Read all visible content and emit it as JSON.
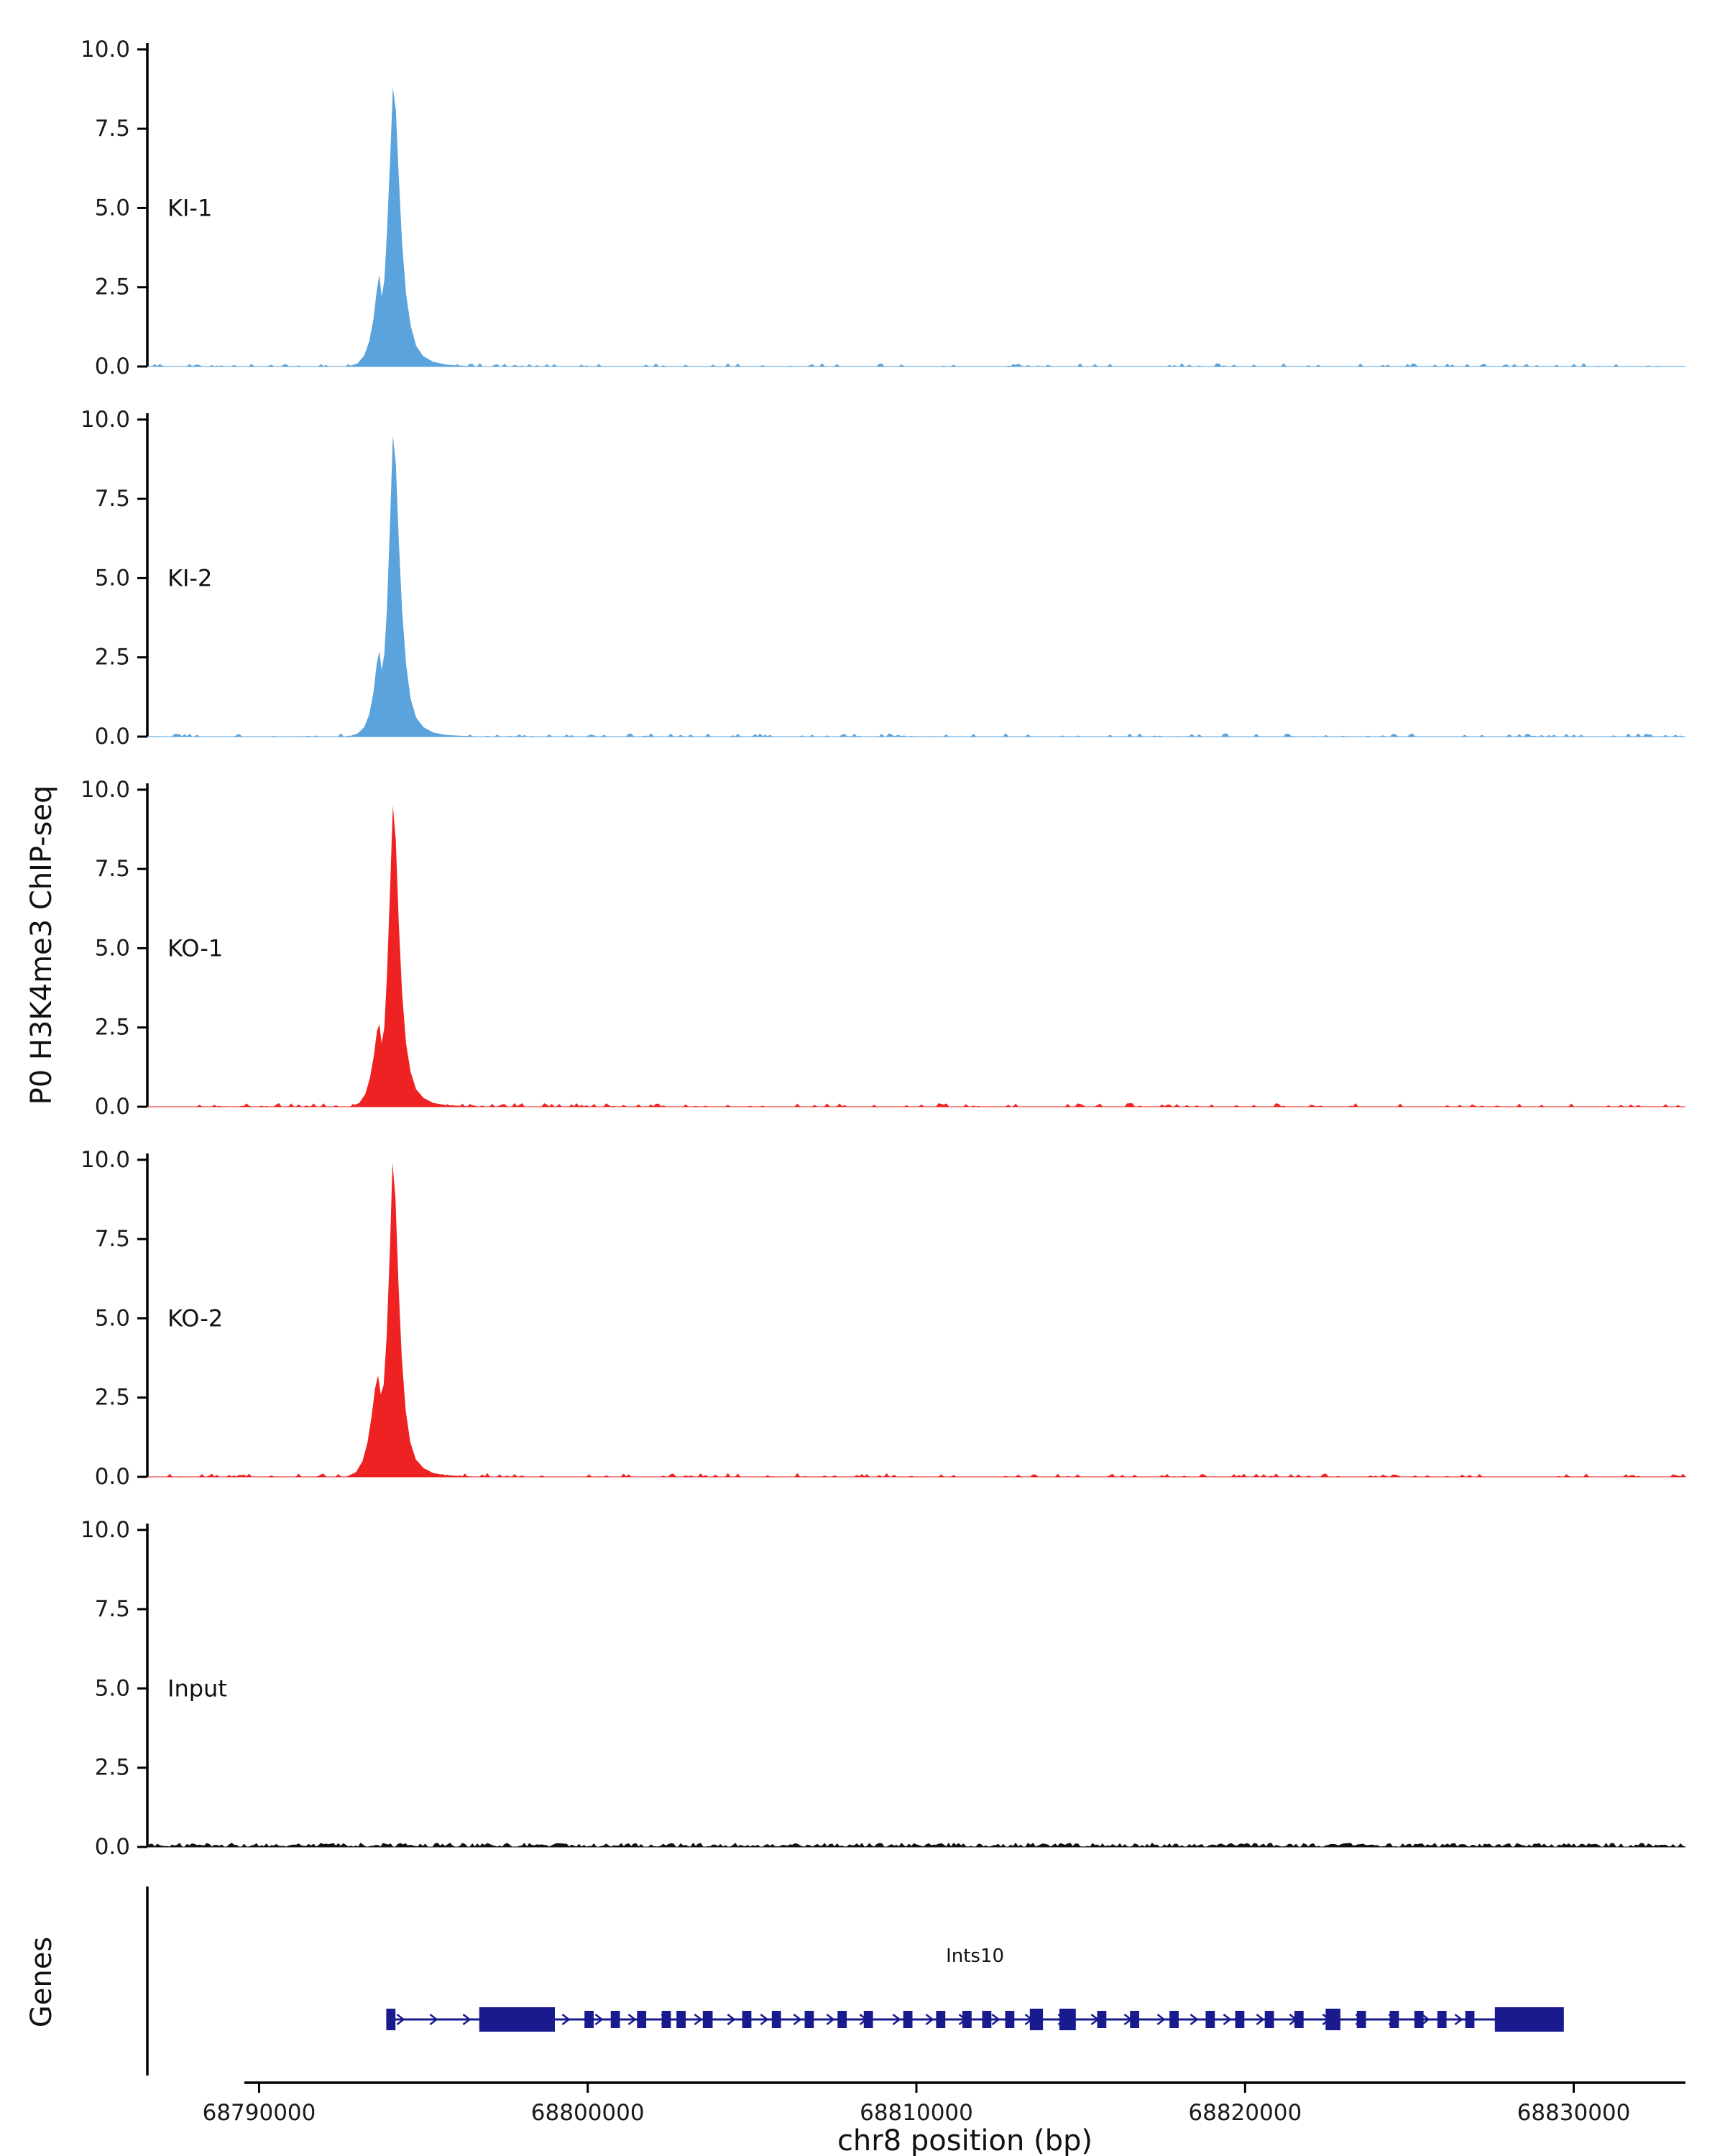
{
  "figure": {
    "background": "#ffffff",
    "text_color": "#111111"
  },
  "chart_data": {
    "type": "area",
    "title": "",
    "xlabel": "chr8 position (bp)",
    "ylabel": "P0 H3K4me3 ChIP-seq",
    "legend": "none",
    "grid": false,
    "x_range": [
      68786600,
      68833400
    ],
    "x_ticks": [
      68790000,
      68800000,
      68810000,
      68820000,
      68830000
    ],
    "x_tick_labels": [
      "68790000",
      "68800000",
      "68810000",
      "68820000",
      "68830000"
    ],
    "ylim": [
      0,
      10.2
    ],
    "y_ticks": [
      0.0,
      2.5,
      5.0,
      7.5,
      10.0
    ],
    "y_tick_labels": [
      "0.0",
      "2.5",
      "5.0",
      "7.5",
      "10.0"
    ],
    "tracks": [
      {
        "label": "KI-1",
        "color": "#5aa3dc",
        "apex_value": 8.8,
        "peak_center_bp": 68794070,
        "noise": {
          "seed": 11,
          "density": 0.22,
          "amplitude": 0.09
        },
        "peak": [
          [
            68792700,
            0
          ],
          [
            68793000,
            0.1
          ],
          [
            68793200,
            0.35
          ],
          [
            68793350,
            0.8
          ],
          [
            68793480,
            1.5
          ],
          [
            68793580,
            2.4
          ],
          [
            68793660,
            2.9
          ],
          [
            68793730,
            2.2
          ],
          [
            68793810,
            2.7
          ],
          [
            68793890,
            4.2
          ],
          [
            68793990,
            6.6
          ],
          [
            68794070,
            8.8
          ],
          [
            68794160,
            8.1
          ],
          [
            68794250,
            6.0
          ],
          [
            68794350,
            3.9
          ],
          [
            68794470,
            2.3
          ],
          [
            68794610,
            1.3
          ],
          [
            68794780,
            0.65
          ],
          [
            68795000,
            0.32
          ],
          [
            68795300,
            0.15
          ],
          [
            68795700,
            0.06
          ],
          [
            68796300,
            0.02
          ],
          [
            68796900,
            0
          ]
        ]
      },
      {
        "label": "KI-2",
        "color": "#5aa3dc",
        "apex_value": 9.5,
        "peak_center_bp": 68794070,
        "noise": {
          "seed": 22,
          "density": 0.22,
          "amplitude": 0.09
        },
        "peak": [
          [
            68792700,
            0
          ],
          [
            68793000,
            0.1
          ],
          [
            68793200,
            0.3
          ],
          [
            68793350,
            0.7
          ],
          [
            68793480,
            1.4
          ],
          [
            68793580,
            2.3
          ],
          [
            68793660,
            2.7
          ],
          [
            68793730,
            2.1
          ],
          [
            68793810,
            2.6
          ],
          [
            68793890,
            4.0
          ],
          [
            68793990,
            6.9
          ],
          [
            68794070,
            9.5
          ],
          [
            68794160,
            8.6
          ],
          [
            68794250,
            6.2
          ],
          [
            68794350,
            4.0
          ],
          [
            68794470,
            2.3
          ],
          [
            68794610,
            1.2
          ],
          [
            68794780,
            0.6
          ],
          [
            68795000,
            0.3
          ],
          [
            68795300,
            0.13
          ],
          [
            68795700,
            0.05
          ],
          [
            68796300,
            0.02
          ],
          [
            68796900,
            0
          ]
        ]
      },
      {
        "label": "KO-1",
        "color": "#ee2222",
        "apex_value": 9.5,
        "peak_center_bp": 68794070,
        "noise": {
          "seed": 33,
          "density": 0.22,
          "amplitude": 0.1
        },
        "peak": [
          [
            68792750,
            0
          ],
          [
            68793050,
            0.12
          ],
          [
            68793230,
            0.4
          ],
          [
            68793370,
            0.9
          ],
          [
            68793490,
            1.6
          ],
          [
            68793590,
            2.4
          ],
          [
            68793660,
            2.6
          ],
          [
            68793730,
            2.0
          ],
          [
            68793810,
            2.5
          ],
          [
            68793890,
            4.1
          ],
          [
            68793990,
            7.0
          ],
          [
            68794070,
            9.5
          ],
          [
            68794160,
            8.4
          ],
          [
            68794250,
            5.8
          ],
          [
            68794350,
            3.6
          ],
          [
            68794470,
            2.0
          ],
          [
            68794610,
            1.1
          ],
          [
            68794780,
            0.55
          ],
          [
            68795000,
            0.28
          ],
          [
            68795300,
            0.12
          ],
          [
            68795700,
            0.05
          ],
          [
            68796300,
            0.02
          ],
          [
            68796900,
            0
          ]
        ]
      },
      {
        "label": "KO-2",
        "color": "#ee2222",
        "apex_value": 9.9,
        "peak_center_bp": 68794060,
        "noise": {
          "seed": 44,
          "density": 0.22,
          "amplitude": 0.1
        },
        "peak": [
          [
            68792650,
            0
          ],
          [
            68792950,
            0.15
          ],
          [
            68793150,
            0.5
          ],
          [
            68793300,
            1.1
          ],
          [
            68793420,
            1.9
          ],
          [
            68793530,
            2.8
          ],
          [
            68793620,
            3.2
          ],
          [
            68793700,
            2.6
          ],
          [
            68793790,
            2.9
          ],
          [
            68793880,
            4.4
          ],
          [
            68793980,
            7.2
          ],
          [
            68794060,
            9.9
          ],
          [
            68794150,
            8.8
          ],
          [
            68794240,
            6.1
          ],
          [
            68794340,
            3.8
          ],
          [
            68794460,
            2.1
          ],
          [
            68794600,
            1.1
          ],
          [
            68794770,
            0.55
          ],
          [
            68795000,
            0.28
          ],
          [
            68795300,
            0.12
          ],
          [
            68795700,
            0.05
          ],
          [
            68796300,
            0.02
          ],
          [
            68796900,
            0
          ]
        ]
      },
      {
        "label": "Input",
        "color": "#111111",
        "apex_value": 0,
        "peak_center_bp": null,
        "noise": {
          "seed": 55,
          "density": 0.8,
          "amplitude": 0.12
        },
        "peak": []
      }
    ],
    "genes_panel": {
      "label": "Genes",
      "gene": {
        "name": "Ints10",
        "strand": "+",
        "chromosome": "chr8",
        "start": 68793870,
        "end": 68829700,
        "color": "#1a1a8f",
        "exons": [
          [
            68793870,
            68794150,
            "m"
          ],
          [
            68796700,
            68799000,
            "l"
          ],
          [
            68799900,
            68800180,
            "s"
          ],
          [
            68800700,
            68800980,
            "s"
          ],
          [
            68801500,
            68801780,
            "s"
          ],
          [
            68802250,
            68802530,
            "s"
          ],
          [
            68802700,
            68802980,
            "s"
          ],
          [
            68803500,
            68803800,
            "s"
          ],
          [
            68804700,
            68804980,
            "s"
          ],
          [
            68805600,
            68805880,
            "s"
          ],
          [
            68806600,
            68806880,
            "s"
          ],
          [
            68807600,
            68807880,
            "s"
          ],
          [
            68808400,
            68808680,
            "s"
          ],
          [
            68809600,
            68809880,
            "s"
          ],
          [
            68810600,
            68810880,
            "s"
          ],
          [
            68811400,
            68811680,
            "s"
          ],
          [
            68812000,
            68812280,
            "s"
          ],
          [
            68812700,
            68812980,
            "s"
          ],
          [
            68813450,
            68813850,
            "m"
          ],
          [
            68814350,
            68814850,
            "m"
          ],
          [
            68815500,
            68815780,
            "s"
          ],
          [
            68816500,
            68816780,
            "s"
          ],
          [
            68817700,
            68817980,
            "s"
          ],
          [
            68818800,
            68819080,
            "s"
          ],
          [
            68819700,
            68819980,
            "s"
          ],
          [
            68820600,
            68820880,
            "s"
          ],
          [
            68821500,
            68821780,
            "s"
          ],
          [
            68822450,
            68822900,
            "m"
          ],
          [
            68823400,
            68823680,
            "s"
          ],
          [
            68824400,
            68824680,
            "s"
          ],
          [
            68825150,
            68825430,
            "s"
          ],
          [
            68825850,
            68826130,
            "s"
          ],
          [
            68826700,
            68826980,
            "s"
          ],
          [
            68827600,
            68829700,
            "l"
          ]
        ]
      }
    }
  }
}
